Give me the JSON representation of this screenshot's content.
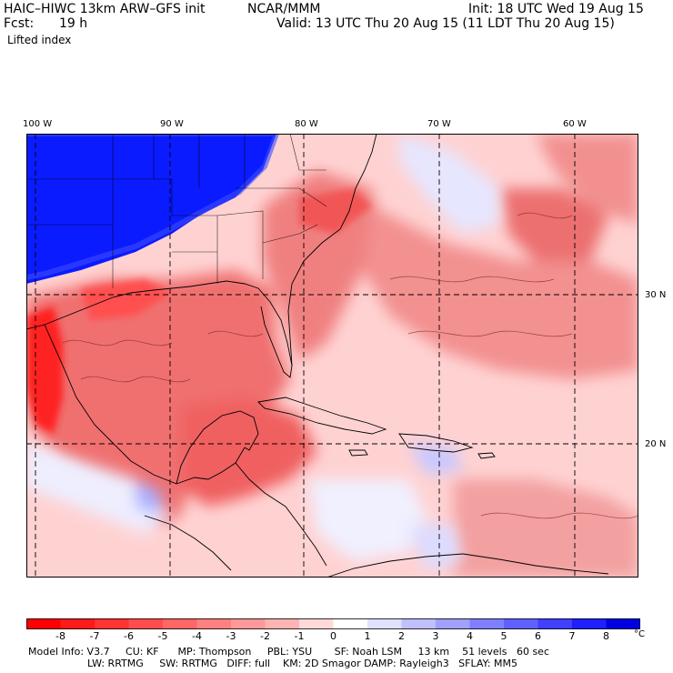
{
  "header": {
    "model": "HAIC–HIWC 13km ARW–GFS init",
    "center": "NCAR/MMM",
    "init": "Init: 18 UTC Wed 19 Aug 15",
    "fcst_label": "Fcst:",
    "fcst_value": "19 h",
    "valid": "Valid: 13 UTC Thu 20 Aug 15 (11 LDT Thu 20 Aug 15)",
    "field": "Lifted index"
  },
  "map": {
    "lon_labels": [
      "100 W",
      "90 W",
      "80 W",
      "70 W",
      "60 W"
    ],
    "lat_labels": [
      "30 N",
      "20 N"
    ],
    "colors": {
      "strong_negative": "#ff0000",
      "negative": "#f08080",
      "weak_negative": "#ffc8c8",
      "neutral": "#ffffff",
      "weak_positive": "#c8c8ff",
      "strong_positive": "#0000ff"
    }
  },
  "colorbar": {
    "labels": [
      "-8",
      "-7",
      "-6",
      "-5",
      "-4",
      "-3",
      "-2",
      "-1",
      "0",
      "1",
      "2",
      "3",
      "4",
      "5",
      "6",
      "7",
      "8"
    ],
    "unit": "°C",
    "colors": [
      "#ff0000",
      "#ff1a1a",
      "#ff3333",
      "#ff4d4d",
      "#ff6666",
      "#ff8080",
      "#ff9999",
      "#ffb3b3",
      "#ffd9d9",
      "#ffffff",
      "#e0e0ff",
      "#c0c0ff",
      "#a0a0ff",
      "#8080ff",
      "#6060ff",
      "#4040ff",
      "#2020ff",
      "#0000e0"
    ]
  },
  "footer": {
    "line1": "Model Info: V3.7     CU: KF      MP: Thompson     PBL: YSU       SF: Noah LSM     13 km    51 levels   60 sec",
    "line2": "LW: RRTMG     SW: RRTMG   DIFF: full    KM: 2D Smagor DAMP: Rayleigh3   SFLAY: MM5"
  }
}
